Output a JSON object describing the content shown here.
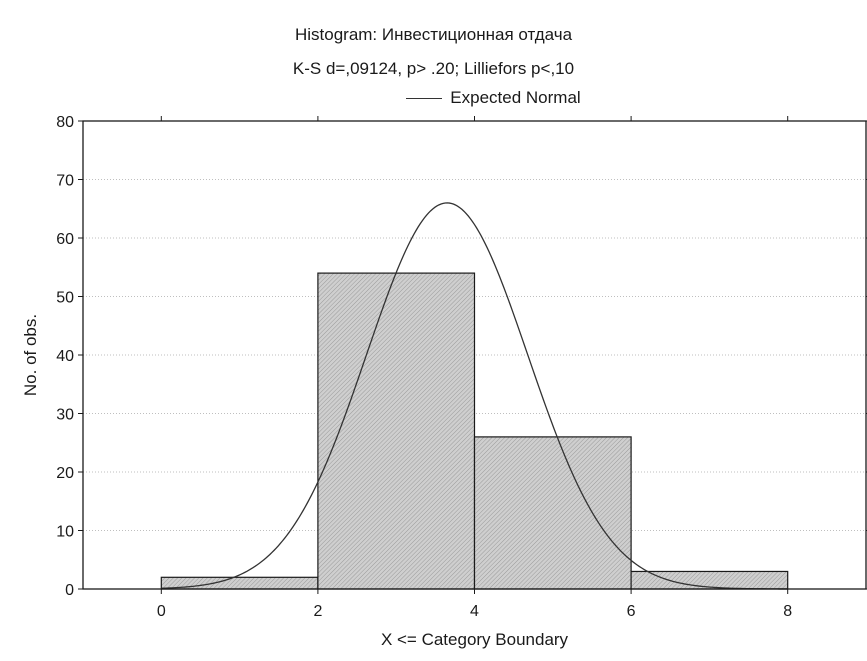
{
  "chart_data": {
    "type": "bar",
    "title": "Histogram: Инвестиционная отдача",
    "subtitle": "K-S d=,09124, p> .20; Lilliefors p<,10",
    "legend": {
      "entries": [
        "Expected Normal"
      ],
      "position": "top"
    },
    "xlabel": "X <= Category Boundary",
    "ylabel": "No. of obs.",
    "xlim": [
      -1,
      9
    ],
    "ylim": [
      0,
      80
    ],
    "xticks": [
      0,
      2,
      4,
      6,
      8
    ],
    "yticks": [
      0,
      10,
      20,
      30,
      40,
      50,
      60,
      70,
      80
    ],
    "grid": true,
    "bins": [
      {
        "from": 0,
        "to": 2,
        "count": 2
      },
      {
        "from": 2,
        "to": 4,
        "count": 54
      },
      {
        "from": 4,
        "to": 6,
        "count": 26
      },
      {
        "from": 6,
        "to": 8,
        "count": 3
      }
    ],
    "expected_normal": {
      "mean": 3.65,
      "sd": 1.03,
      "peak": 66
    },
    "colors": {
      "bar_fill": "#cfcfcf",
      "bar_edge": "#1a1a1a",
      "curve": "#333333",
      "grid": "#bfbfbf"
    }
  }
}
